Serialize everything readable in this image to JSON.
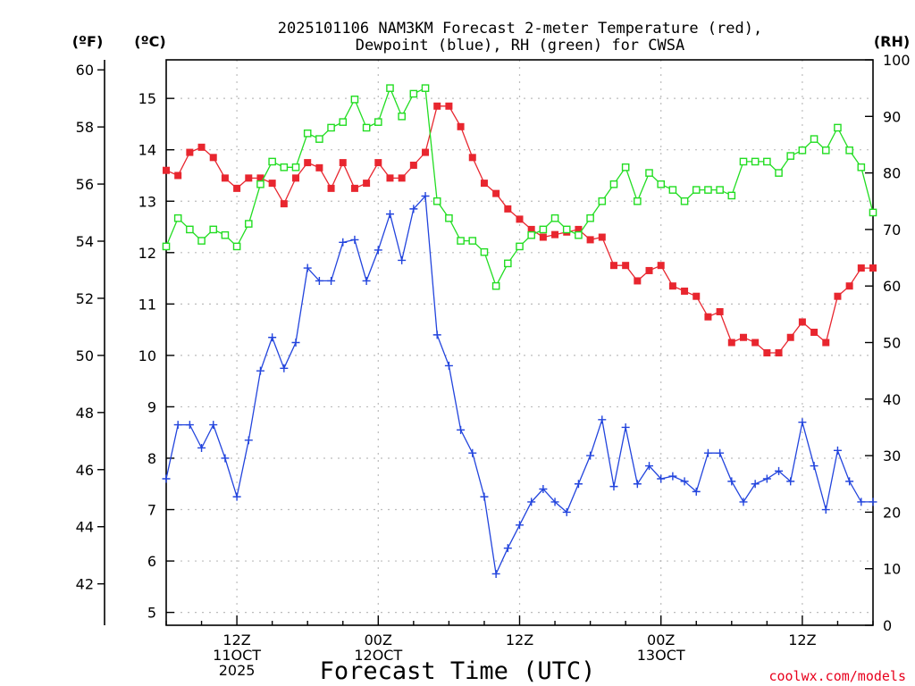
{
  "chart_data": {
    "type": "line",
    "title": [
      "2025101106 NAM3KM Forecast 2-meter Temperature (red),",
      "Dewpoint (blue), RH (green) for CWSA"
    ],
    "xlabel": "Forecast Time (UTC)",
    "credit": "coolwx.com/models",
    "x_start": "2025-10-11T06:00Z",
    "x_step_hours": 1,
    "x_ticks": [
      {
        "hour": 6,
        "lines": [
          "12Z",
          "11OCT",
          "2025"
        ]
      },
      {
        "hour": 18,
        "lines": [
          "00Z",
          "12OCT"
        ]
      },
      {
        "hour": 30,
        "lines": [
          "12Z"
        ]
      },
      {
        "hour": 42,
        "lines": [
          "00Z",
          "13OCT"
        ]
      },
      {
        "hour": 54,
        "lines": [
          "12Z"
        ]
      }
    ],
    "xlim": [
      0,
      60
    ],
    "axes": {
      "fahrenheit": {
        "unit": "(ºF)",
        "ticks": [
          42,
          44,
          46,
          48,
          50,
          52,
          54,
          56,
          58,
          60
        ]
      },
      "celsius": {
        "unit": "(ºC)",
        "ticks": [
          5,
          6,
          7,
          8,
          9,
          10,
          11,
          12,
          13,
          14,
          15
        ],
        "ylim": [
          4.75,
          15.75
        ]
      },
      "rh": {
        "unit": "(RH)",
        "ticks": [
          0,
          10,
          20,
          30,
          40,
          50,
          60,
          70,
          80,
          90,
          100
        ],
        "ylim": [
          0,
          100
        ]
      }
    },
    "grid": true,
    "series": [
      {
        "name": "2-meter Temperature",
        "axis": "celsius",
        "color": "#e8262f",
        "marker": "filled-square",
        "values": [
          13.6,
          13.5,
          13.95,
          14.05,
          13.85,
          13.45,
          13.25,
          13.45,
          13.45,
          13.35,
          12.95,
          13.45,
          13.75,
          13.65,
          13.25,
          13.75,
          13.25,
          13.35,
          13.75,
          13.45,
          13.45,
          13.7,
          13.95,
          14.85,
          14.85,
          14.45,
          13.85,
          13.35,
          13.15,
          12.85,
          12.65,
          12.45,
          12.3,
          12.35,
          12.4,
          12.45,
          12.25,
          12.3,
          11.75,
          11.75,
          11.45,
          11.65,
          11.75,
          11.35,
          11.25,
          11.15,
          10.75,
          10.85,
          10.25,
          10.35,
          10.25,
          10.05,
          10.05,
          10.35,
          10.65,
          10.45,
          10.25,
          11.15,
          11.35,
          11.7,
          11.7
        ]
      },
      {
        "name": "Dewpoint",
        "axis": "celsius",
        "color": "#2244dd",
        "marker": "plus",
        "values": [
          7.6,
          8.65,
          8.65,
          8.2,
          8.65,
          8.0,
          7.25,
          8.35,
          9.7,
          10.35,
          9.75,
          10.25,
          11.7,
          11.45,
          11.45,
          12.2,
          12.25,
          11.45,
          12.05,
          12.75,
          11.85,
          12.85,
          13.1,
          10.4,
          9.8,
          8.55,
          8.1,
          7.25,
          5.75,
          6.25,
          6.7,
          7.15,
          7.4,
          7.15,
          6.95,
          7.5,
          8.05,
          8.75,
          7.45,
          8.6,
          7.5,
          7.85,
          7.6,
          7.65,
          7.55,
          7.35,
          8.1,
          8.1,
          7.55,
          7.15,
          7.5,
          7.6,
          7.75,
          7.55,
          8.7,
          7.85,
          7.0,
          8.15,
          7.55,
          7.15,
          7.15
        ]
      },
      {
        "name": "RH",
        "axis": "rh",
        "color": "#22dd22",
        "marker": "open-square",
        "values": [
          67,
          72,
          70,
          68,
          70,
          69,
          67,
          71,
          78,
          82,
          81,
          81,
          87,
          86,
          88,
          89,
          93,
          88,
          89,
          95,
          90,
          94,
          95,
          75,
          72,
          68,
          68,
          66,
          60,
          64,
          67,
          69,
          70,
          72,
          70,
          69,
          72,
          75,
          78,
          81,
          75,
          80,
          78,
          77,
          75,
          77,
          77,
          77,
          76,
          82,
          82,
          82,
          80,
          83,
          84,
          86,
          84,
          88,
          84,
          81,
          73
        ]
      }
    ]
  }
}
